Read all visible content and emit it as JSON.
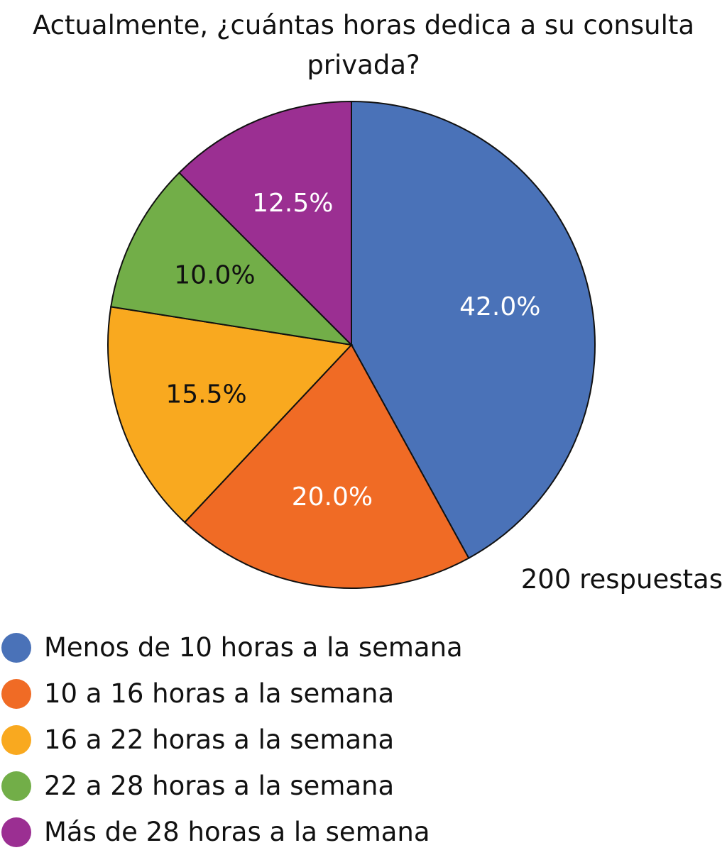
{
  "chart_data": {
    "type": "pie",
    "title_lines": [
      "Actualmente, ¿cuántas horas dedica a su consulta",
      "privada?"
    ],
    "note": "200 respuestas",
    "label_suffix": "%",
    "slices": [
      {
        "label": "Menos de 10 horas a la semana",
        "value": 42.0,
        "color": "#4A72B8",
        "label_color": "#ffffff"
      },
      {
        "label": "10 a 16 horas a la semana",
        "value": 20.0,
        "color": "#F06B25",
        "label_color": "#ffffff"
      },
      {
        "label": "16 a 22 horas a la semana",
        "value": 15.5,
        "color": "#F9A91F",
        "label_color": "#111111"
      },
      {
        "label": "22 a 28 horas a la semana",
        "value": 10.0,
        "color": "#72AE48",
        "label_color": "#111111"
      },
      {
        "label": "Más de 28 horas a la semana",
        "value": 12.5,
        "color": "#9B2F92",
        "label_color": "#ffffff"
      }
    ],
    "start_angle": "top",
    "direction": "clockwise",
    "legend_position": "bottom-left"
  }
}
